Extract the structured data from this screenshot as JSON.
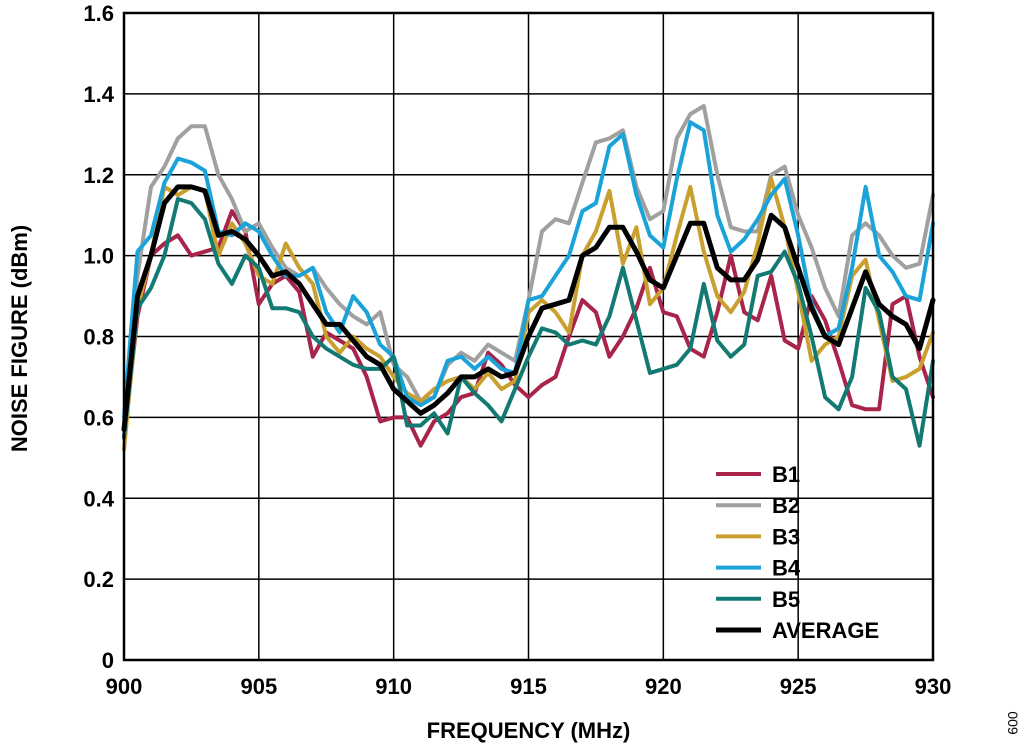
{
  "figure_id": "009",
  "chart_data": {
    "type": "line",
    "title": "",
    "xlabel": "FREQUENCY (MHz)",
    "ylabel": "NOISE FIGURE (dBm)",
    "xlim": [
      900,
      930
    ],
    "ylim": [
      0,
      1.6
    ],
    "xticks": [
      900,
      905,
      910,
      915,
      920,
      925,
      930
    ],
    "yticks": [
      0,
      0.2,
      0.4,
      0.6,
      0.8,
      1.0,
      1.2,
      1.4,
      1.6
    ],
    "ytick_labels": [
      "0",
      "0.2",
      "0.4",
      "0.6",
      "0.8",
      "1.0",
      "1.2",
      "1.4",
      "1.6"
    ],
    "grid": true,
    "legend_position": "bottom-right",
    "x": [
      900,
      900.5,
      901,
      901.5,
      902,
      902.5,
      903,
      903.5,
      904,
      904.5,
      905,
      905.5,
      906,
      906.5,
      907,
      907.5,
      908,
      908.5,
      909,
      909.5,
      910,
      910.5,
      911,
      911.5,
      912,
      912.5,
      913,
      913.5,
      914,
      914.5,
      915,
      915.5,
      916,
      916.5,
      917,
      917.5,
      918,
      918.5,
      919,
      919.5,
      920,
      920.5,
      921,
      921.5,
      922,
      922.5,
      923,
      923.5,
      924,
      924.5,
      925,
      925.5,
      926,
      926.5,
      927,
      927.5,
      928,
      928.5,
      929,
      929.5,
      930
    ],
    "series": [
      {
        "name": "B1",
        "color": "#a8244a",
        "width": 4,
        "values": [
          0.55,
          0.85,
          1.0,
          1.03,
          1.05,
          1.0,
          1.01,
          1.02,
          1.11,
          1.06,
          0.88,
          0.93,
          0.95,
          0.91,
          0.75,
          0.81,
          0.79,
          0.77,
          0.7,
          0.59,
          0.6,
          0.6,
          0.53,
          0.59,
          0.61,
          0.65,
          0.66,
          0.76,
          0.73,
          0.68,
          0.65,
          0.68,
          0.7,
          0.8,
          0.89,
          0.86,
          0.75,
          0.8,
          0.87,
          0.97,
          0.86,
          0.85,
          0.77,
          0.75,
          0.86,
          1.0,
          0.86,
          0.84,
          0.95,
          0.79,
          0.77,
          0.9,
          0.84,
          0.74,
          0.63,
          0.62,
          0.62,
          0.88,
          0.9,
          0.75,
          0.65
        ]
      },
      {
        "name": "B2",
        "color": "#a0a0a0",
        "width": 4,
        "values": [
          0.58,
          0.95,
          1.17,
          1.22,
          1.29,
          1.32,
          1.32,
          1.2,
          1.14,
          1.06,
          1.08,
          1.02,
          0.97,
          0.95,
          0.97,
          0.92,
          0.88,
          0.85,
          0.83,
          0.86,
          0.73,
          0.7,
          0.64,
          0.65,
          0.73,
          0.76,
          0.74,
          0.78,
          0.76,
          0.74,
          0.89,
          1.06,
          1.09,
          1.08,
          1.18,
          1.28,
          1.29,
          1.31,
          1.17,
          1.09,
          1.11,
          1.29,
          1.35,
          1.37,
          1.2,
          1.07,
          1.06,
          1.06,
          1.2,
          1.22,
          1.1,
          1.02,
          0.92,
          0.85,
          1.05,
          1.08,
          1.05,
          1.0,
          0.97,
          0.98,
          1.15
        ]
      },
      {
        "name": "B3",
        "color": "#c9a030",
        "width": 4,
        "values": [
          0.52,
          0.87,
          1.0,
          1.17,
          1.15,
          1.17,
          1.16,
          1.0,
          1.08,
          1.03,
          0.95,
          0.93,
          1.03,
          0.97,
          0.93,
          0.8,
          0.76,
          0.8,
          0.77,
          0.75,
          0.7,
          0.66,
          0.64,
          0.67,
          0.69,
          0.7,
          0.67,
          0.71,
          0.67,
          0.69,
          0.86,
          0.89,
          0.86,
          0.81,
          1.0,
          1.06,
          1.16,
          0.98,
          1.07,
          0.88,
          0.92,
          1.05,
          1.17,
          1.01,
          0.9,
          0.86,
          0.91,
          1.03,
          1.19,
          1.07,
          0.91,
          0.74,
          0.78,
          0.8,
          0.95,
          0.99,
          0.84,
          0.69,
          0.7,
          0.72,
          0.81
        ]
      },
      {
        "name": "B4",
        "color": "#1ba3d9",
        "width": 4,
        "values": [
          0.6,
          1.01,
          1.05,
          1.18,
          1.24,
          1.23,
          1.21,
          1.06,
          1.05,
          1.08,
          1.06,
          1.0,
          0.95,
          0.95,
          0.97,
          0.86,
          0.81,
          0.9,
          0.86,
          0.78,
          0.75,
          0.65,
          0.63,
          0.65,
          0.74,
          0.75,
          0.72,
          0.75,
          0.72,
          0.71,
          0.89,
          0.9,
          0.95,
          1.0,
          1.11,
          1.13,
          1.27,
          1.3,
          1.15,
          1.05,
          1.02,
          1.19,
          1.33,
          1.31,
          1.1,
          1.01,
          1.04,
          1.09,
          1.15,
          1.19,
          1.05,
          0.88,
          0.8,
          0.82,
          0.97,
          1.17,
          1.0,
          0.96,
          0.9,
          0.89,
          1.08
        ]
      },
      {
        "name": "B5",
        "color": "#137a73",
        "width": 4,
        "values": [
          0.55,
          0.87,
          0.92,
          1.0,
          1.14,
          1.13,
          1.09,
          0.98,
          0.93,
          1.0,
          0.97,
          0.87,
          0.87,
          0.86,
          0.8,
          0.77,
          0.75,
          0.73,
          0.72,
          0.72,
          0.75,
          0.58,
          0.58,
          0.61,
          0.56,
          0.7,
          0.66,
          0.63,
          0.59,
          0.67,
          0.75,
          0.82,
          0.81,
          0.78,
          0.79,
          0.78,
          0.85,
          0.97,
          0.84,
          0.71,
          0.72,
          0.73,
          0.77,
          0.93,
          0.79,
          0.75,
          0.78,
          0.95,
          0.96,
          1.01,
          0.93,
          0.8,
          0.65,
          0.62,
          0.7,
          0.92,
          0.86,
          0.7,
          0.67,
          0.53,
          0.74
        ]
      },
      {
        "name": "AVERAGE",
        "color": "#000000",
        "width": 5,
        "values": [
          0.57,
          0.9,
          1.0,
          1.13,
          1.17,
          1.17,
          1.16,
          1.05,
          1.06,
          1.04,
          1.0,
          0.95,
          0.96,
          0.93,
          0.88,
          0.83,
          0.83,
          0.79,
          0.75,
          0.73,
          0.67,
          0.64,
          0.61,
          0.63,
          0.66,
          0.7,
          0.7,
          0.72,
          0.7,
          0.71,
          0.8,
          0.87,
          0.88,
          0.89,
          1.0,
          1.02,
          1.07,
          1.07,
          1.01,
          0.94,
          0.92,
          1.0,
          1.08,
          1.08,
          0.97,
          0.94,
          0.94,
          0.99,
          1.1,
          1.07,
          0.97,
          0.87,
          0.8,
          0.78,
          0.87,
          0.96,
          0.88,
          0.85,
          0.83,
          0.77,
          0.89
        ]
      }
    ]
  }
}
